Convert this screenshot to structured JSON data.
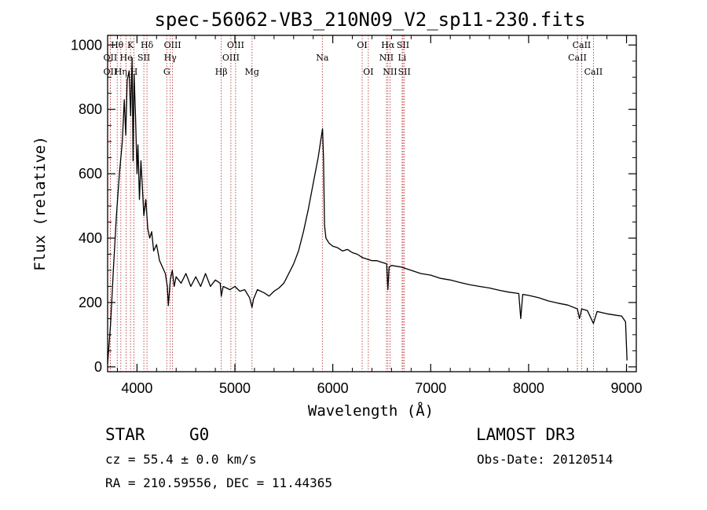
{
  "chart_data": {
    "type": "line",
    "title": "spec-56062-VB3_210N09_V2_sp11-230.fits",
    "xlabel": "Wavelength (Å)",
    "ylabel": "Flux (relative)",
    "xlim": [
      3700,
      9100
    ],
    "ylim": [
      -15,
      1030
    ],
    "xticks": [
      4000,
      5000,
      6000,
      7000,
      8000,
      9000
    ],
    "yticks": [
      0,
      200,
      400,
      600,
      800,
      1000
    ],
    "series": [
      {
        "name": "flux",
        "points": [
          [
            3700,
            10
          ],
          [
            3730,
            130
          ],
          [
            3760,
            310
          ],
          [
            3790,
            470
          ],
          [
            3820,
            600
          ],
          [
            3850,
            700
          ],
          [
            3870,
            830
          ],
          [
            3885,
            720
          ],
          [
            3900,
            890
          ],
          [
            3920,
            920
          ],
          [
            3935,
            780
          ],
          [
            3950,
            960
          ],
          [
            3960,
            640
          ],
          [
            3970,
            910
          ],
          [
            3985,
            780
          ],
          [
            4000,
            600
          ],
          [
            4010,
            690
          ],
          [
            4025,
            520
          ],
          [
            4040,
            640
          ],
          [
            4055,
            560
          ],
          [
            4070,
            470
          ],
          [
            4090,
            520
          ],
          [
            4110,
            430
          ],
          [
            4130,
            400
          ],
          [
            4150,
            420
          ],
          [
            4170,
            360
          ],
          [
            4200,
            380
          ],
          [
            4230,
            330
          ],
          [
            4260,
            310
          ],
          [
            4290,
            290
          ],
          [
            4310,
            250
          ],
          [
            4320,
            190
          ],
          [
            4340,
            270
          ],
          [
            4360,
            300
          ],
          [
            4380,
            250
          ],
          [
            4400,
            280
          ],
          [
            4450,
            260
          ],
          [
            4500,
            290
          ],
          [
            4550,
            250
          ],
          [
            4600,
            280
          ],
          [
            4650,
            250
          ],
          [
            4700,
            290
          ],
          [
            4750,
            250
          ],
          [
            4800,
            270
          ],
          [
            4850,
            260
          ],
          [
            4861,
            220
          ],
          [
            4880,
            250
          ],
          [
            4950,
            240
          ],
          [
            5000,
            250
          ],
          [
            5050,
            235
          ],
          [
            5100,
            240
          ],
          [
            5150,
            215
          ],
          [
            5175,
            185
          ],
          [
            5190,
            210
          ],
          [
            5230,
            240
          ],
          [
            5300,
            230
          ],
          [
            5350,
            220
          ],
          [
            5400,
            235
          ],
          [
            5450,
            245
          ],
          [
            5500,
            260
          ],
          [
            5550,
            290
          ],
          [
            5600,
            320
          ],
          [
            5650,
            360
          ],
          [
            5700,
            420
          ],
          [
            5750,
            490
          ],
          [
            5800,
            570
          ],
          [
            5850,
            650
          ],
          [
            5880,
            710
          ],
          [
            5895,
            740
          ],
          [
            5905,
            650
          ],
          [
            5915,
            440
          ],
          [
            5930,
            400
          ],
          [
            5960,
            385
          ],
          [
            6000,
            375
          ],
          [
            6050,
            370
          ],
          [
            6100,
            360
          ],
          [
            6150,
            365
          ],
          [
            6200,
            355
          ],
          [
            6250,
            350
          ],
          [
            6300,
            340
          ],
          [
            6350,
            335
          ],
          [
            6400,
            330
          ],
          [
            6450,
            330
          ],
          [
            6500,
            325
          ],
          [
            6550,
            320
          ],
          [
            6563,
            240
          ],
          [
            6575,
            310
          ],
          [
            6600,
            315
          ],
          [
            6700,
            310
          ],
          [
            6800,
            300
          ],
          [
            6900,
            290
          ],
          [
            7000,
            285
          ],
          [
            7100,
            275
          ],
          [
            7200,
            270
          ],
          [
            7300,
            262
          ],
          [
            7400,
            255
          ],
          [
            7500,
            250
          ],
          [
            7600,
            245
          ],
          [
            7700,
            238
          ],
          [
            7800,
            232
          ],
          [
            7900,
            228
          ],
          [
            7920,
            150
          ],
          [
            7940,
            225
          ],
          [
            8000,
            222
          ],
          [
            8100,
            215
          ],
          [
            8200,
            205
          ],
          [
            8300,
            198
          ],
          [
            8400,
            192
          ],
          [
            8498,
            180
          ],
          [
            8520,
            150
          ],
          [
            8542,
            180
          ],
          [
            8600,
            175
          ],
          [
            8662,
            135
          ],
          [
            8700,
            172
          ],
          [
            8800,
            165
          ],
          [
            8900,
            160
          ],
          [
            8950,
            158
          ],
          [
            8990,
            140
          ],
          [
            9005,
            20
          ]
        ]
      }
    ],
    "lines": [
      {
        "label": "Hθ",
        "wl": 3798,
        "row": 1
      },
      {
        "label": "OII",
        "wl": 3727,
        "row": 2
      },
      {
        "label": "OII",
        "wl": 3727,
        "row": 3
      },
      {
        "label": "Hη",
        "wl": 3835,
        "row": 3
      },
      {
        "label": "He",
        "wl": 3889,
        "row": 2
      },
      {
        "label": "K",
        "wl": 3934,
        "row": 1
      },
      {
        "label": "SII",
        "wl": 4070,
        "row": 2
      },
      {
        "label": "H",
        "wl": 3969,
        "row": 3
      },
      {
        "label": "Hδ",
        "wl": 4102,
        "row": 1
      },
      {
        "label": "OIII",
        "wl": 4363,
        "row": 1
      },
      {
        "label": "Hγ",
        "wl": 4340,
        "row": 2
      },
      {
        "label": "G",
        "wl": 4304,
        "row": 3
      },
      {
        "label": "Hβ",
        "wl": 4861,
        "row": 3
      },
      {
        "label": "OIII",
        "wl": 4959,
        "row": 2
      },
      {
        "label": "OIII",
        "wl": 5007,
        "row": 1
      },
      {
        "label": "Mg",
        "wl": 5175,
        "row": 3
      },
      {
        "label": "Na",
        "wl": 5893,
        "row": 2
      },
      {
        "label": "OI",
        "wl": 6300,
        "row": 1
      },
      {
        "label": "OI",
        "wl": 6363,
        "row": 3
      },
      {
        "label": "Hα",
        "wl": 6563,
        "row": 1
      },
      {
        "label": "NII",
        "wl": 6548,
        "row": 2
      },
      {
        "label": "NII",
        "wl": 6584,
        "row": 3
      },
      {
        "label": "SII",
        "wl": 6717,
        "row": 1
      },
      {
        "label": "Li",
        "wl": 6708,
        "row": 2
      },
      {
        "label": "SII",
        "wl": 6731,
        "row": 3
      },
      {
        "label": "CaII",
        "wl": 8542,
        "row": 1
      },
      {
        "label": "CaII",
        "wl": 8498,
        "row": 2
      },
      {
        "label": "CaII",
        "wl": 8662,
        "row": 3
      }
    ]
  },
  "info": {
    "class": "STAR",
    "subclass": "G0",
    "survey": "LAMOST DR3",
    "cz": "cz = 55.4 ± 0.0 km/s",
    "obs_date": "Obs-Date: 20120514",
    "coords": "RA = 210.59556, DEC =  11.44365"
  }
}
